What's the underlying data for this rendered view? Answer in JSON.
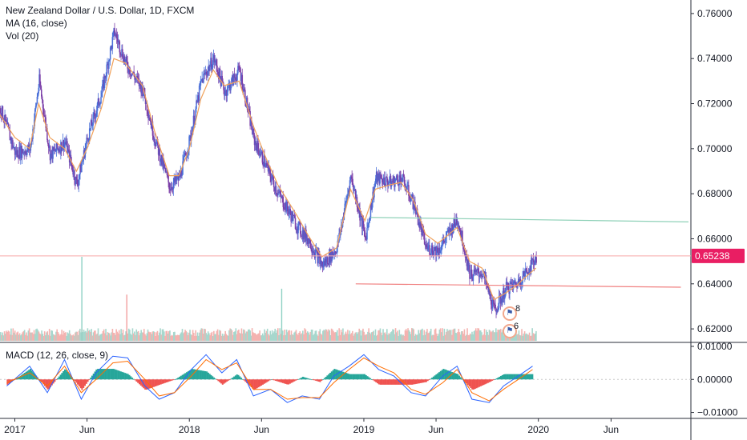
{
  "header": {
    "title": "New Zealand Dollar / U.S. Dollar, 1D, FXCM",
    "ma_label": "MA (16, close)",
    "vol_label": "Vol (20)",
    "macd_label": "MACD (12, 26, close, 9)"
  },
  "colors": {
    "up": "#26a69a",
    "down": "#ef5350",
    "candle_up": "#4a6fd8",
    "candle_down": "#7b3fa8",
    "ma": "#f0a15a",
    "macd_line": "#2962ff",
    "signal_line": "#ff6d00",
    "price_line": "#f7a6a6",
    "price_badge": "#e91e63",
    "resistance": "#8fd1b8",
    "support": "#f08080"
  },
  "chart_data": {
    "type": "line",
    "symbol": "NZDUSD",
    "interval": "1D",
    "source": "FXCM",
    "y_axis": {
      "ticks": [
        "0.76000",
        "0.74000",
        "0.72000",
        "0.70000",
        "0.68000",
        "0.66000",
        "0.64000",
        "0.62000"
      ],
      "range": [
        0.614,
        0.766
      ]
    },
    "x_axis": {
      "labels": [
        "2017",
        "Jun",
        "2018",
        "Jun",
        "2019",
        "Jun",
        "2020",
        "Jun"
      ],
      "label_dates": [
        "2017-01-01",
        "2017-06-01",
        "2018-01-01",
        "2018-06-01",
        "2019-01-01",
        "2019-06-01",
        "2020-01-01",
        "2020-06-01"
      ],
      "range": [
        "2016-12-01",
        "2020-11-15"
      ]
    },
    "price_series": {
      "name": "New Zealand Dollar / U.S. Dollar",
      "dates": [
        "2016-12-01",
        "2017-01-01",
        "2017-02-01",
        "2017-02-20",
        "2017-03-15",
        "2017-04-15",
        "2017-05-10",
        "2017-06-01",
        "2017-07-01",
        "2017-07-27",
        "2017-08-20",
        "2017-09-25",
        "2017-10-20",
        "2017-11-20",
        "2017-12-10",
        "2018-01-01",
        "2018-01-25",
        "2018-02-20",
        "2018-03-15",
        "2018-04-15",
        "2018-05-15",
        "2018-06-10",
        "2018-07-05",
        "2018-08-15",
        "2018-09-05",
        "2018-10-05",
        "2018-11-05",
        "2018-12-04",
        "2019-01-03",
        "2019-01-25",
        "2019-02-25",
        "2019-03-20",
        "2019-04-15",
        "2019-05-10",
        "2019-06-05",
        "2019-07-15",
        "2019-08-10",
        "2019-09-05",
        "2019-09-30",
        "2019-10-25",
        "2019-11-15",
        "2019-12-05",
        "2019-12-27"
      ],
      "close": [
        0.718,
        0.698,
        0.7,
        0.73,
        0.697,
        0.703,
        0.684,
        0.705,
        0.725,
        0.752,
        0.738,
        0.726,
        0.704,
        0.683,
        0.687,
        0.704,
        0.73,
        0.74,
        0.725,
        0.735,
        0.704,
        0.692,
        0.68,
        0.665,
        0.66,
        0.648,
        0.656,
        0.688,
        0.66,
        0.687,
        0.685,
        0.687,
        0.675,
        0.656,
        0.655,
        0.669,
        0.644,
        0.645,
        0.628,
        0.638,
        0.64,
        0.645,
        0.652
      ]
    },
    "ma_series": {
      "period": 16,
      "close": [
        0.715,
        0.705,
        0.7,
        0.72,
        0.705,
        0.7,
        0.69,
        0.7,
        0.718,
        0.74,
        0.738,
        0.728,
        0.708,
        0.688,
        0.688,
        0.7,
        0.722,
        0.735,
        0.728,
        0.73,
        0.71,
        0.696,
        0.684,
        0.67,
        0.662,
        0.652,
        0.656,
        0.682,
        0.668,
        0.682,
        0.684,
        0.685,
        0.677,
        0.662,
        0.658,
        0.665,
        0.65,
        0.647,
        0.633,
        0.636,
        0.639,
        0.643,
        0.647
      ]
    },
    "last_price": "0.65238",
    "trendlines": [
      {
        "name": "resistance",
        "from": [
          "2019-01-15",
          0.6695
        ],
        "to": [
          "2020-11-10",
          0.6675
        ]
      },
      {
        "name": "support",
        "from": [
          "2018-12-15",
          0.64
        ],
        "to": [
          "2020-10-25",
          0.6385
        ]
      }
    ],
    "events": [
      {
        "date": "2019-12-05",
        "flag": "USA",
        "count": "8"
      },
      {
        "date": "2019-12-05",
        "flag": "USA",
        "count": "6"
      }
    ],
    "volume": {
      "spikes": [
        {
          "date": "2017-05-20",
          "level": 1.0
        },
        {
          "date": "2017-08-22",
          "level": 0.55
        },
        {
          "date": "2018-07-12",
          "level": 0.62
        }
      ]
    },
    "macd": {
      "params": [
        12,
        26,
        "close",
        9
      ],
      "y_axis": {
        "ticks": [
          "0.01000",
          "0.00000",
          "−0.01000"
        ],
        "range": [
          -0.0118,
          0.0112
        ]
      },
      "dates": [
        "2016-12-15",
        "2017-02-01",
        "2017-03-10",
        "2017-04-15",
        "2017-05-20",
        "2017-06-20",
        "2017-07-25",
        "2017-08-25",
        "2017-09-30",
        "2017-10-30",
        "2017-12-01",
        "2018-01-05",
        "2018-02-05",
        "2018-03-10",
        "2018-04-10",
        "2018-05-15",
        "2018-06-20",
        "2018-07-25",
        "2018-08-25",
        "2018-09-30",
        "2018-10-30",
        "2018-12-01",
        "2019-01-01",
        "2019-02-01",
        "2019-03-05",
        "2019-04-10",
        "2019-05-10",
        "2019-06-15",
        "2019-07-15",
        "2019-08-15",
        "2019-09-20",
        "2019-10-20",
        "2019-11-20",
        "2019-12-20"
      ],
      "macd_line": [
        -0.002,
        0.004,
        -0.004,
        0.006,
        -0.006,
        0.002,
        0.007,
        0.0065,
        -0.002,
        -0.006,
        -0.004,
        0.003,
        0.0075,
        0.002,
        0.006,
        -0.005,
        -0.003,
        -0.007,
        -0.005,
        -0.006,
        0.001,
        0.004,
        0.0075,
        0.003,
        0.001,
        -0.004,
        -0.005,
        0.001,
        0.004,
        -0.006,
        -0.007,
        -0.002,
        0.001,
        0.004
      ],
      "signal_line": [
        -0.001,
        0.002,
        -0.002,
        0.004,
        -0.004,
        0.0,
        0.005,
        0.0055,
        0.0,
        -0.005,
        -0.004,
        0.001,
        0.006,
        0.003,
        0.005,
        -0.003,
        -0.003,
        -0.006,
        -0.0055,
        -0.0055,
        -0.001,
        0.003,
        0.0065,
        0.004,
        0.002,
        -0.003,
        -0.0045,
        -0.001,
        0.003,
        -0.004,
        -0.0065,
        -0.003,
        0.0,
        0.003
      ]
    }
  }
}
